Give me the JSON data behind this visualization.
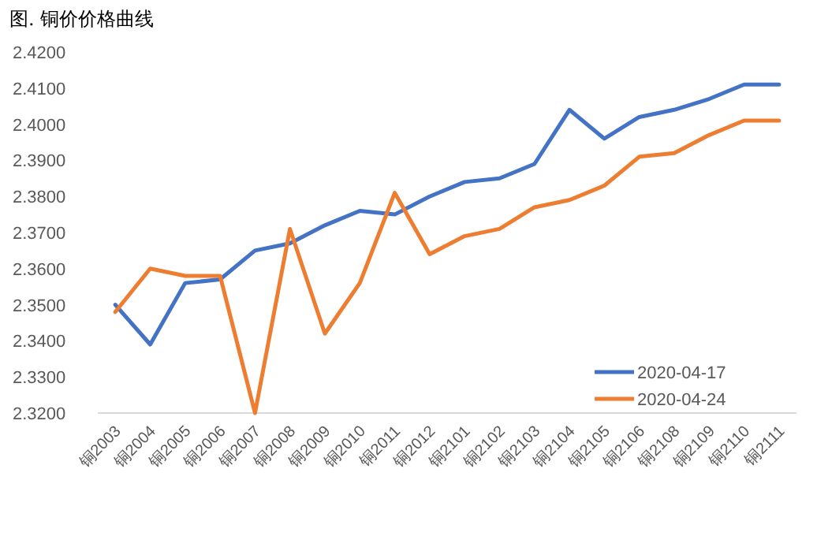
{
  "chart_data": {
    "type": "line",
    "title": "图. 铜价价格曲线",
    "categories": [
      "铜2003",
      "铜2004",
      "铜2005",
      "铜2006",
      "铜2007",
      "铜2008",
      "铜2009",
      "铜2010",
      "铜2011",
      "铜2012",
      "铜2101",
      "铜2102",
      "铜2103",
      "铜2104",
      "铜2105",
      "铜2106",
      "铜2108",
      "铜2109",
      "铜2110",
      "铜2111"
    ],
    "series": [
      {
        "name": "2020-04-17",
        "color": "#4472c4",
        "values": [
          2.35,
          2.339,
          2.356,
          2.357,
          2.365,
          2.367,
          2.372,
          2.376,
          2.375,
          2.38,
          2.384,
          2.385,
          2.389,
          2.404,
          2.396,
          2.402,
          2.404,
          2.407,
          2.411,
          2.411
        ]
      },
      {
        "name": "2020-04-24",
        "color": "#ed7d31",
        "values": [
          2.348,
          2.36,
          2.358,
          2.358,
          2.32,
          2.371,
          2.342,
          2.356,
          2.381,
          2.364,
          2.369,
          2.371,
          2.377,
          2.379,
          2.383,
          2.391,
          2.392,
          2.397,
          2.401,
          2.401
        ]
      }
    ],
    "ylim": [
      2.32,
      2.42
    ],
    "yticks": [
      {
        "value": 2.32,
        "label": "2.3200"
      },
      {
        "value": 2.33,
        "label": "2.3300"
      },
      {
        "value": 2.34,
        "label": "2.3400"
      },
      {
        "value": 2.35,
        "label": "2.3500"
      },
      {
        "value": 2.36,
        "label": "2.3600"
      },
      {
        "value": 2.37,
        "label": "2.3700"
      },
      {
        "value": 2.38,
        "label": "2.3800"
      },
      {
        "value": 2.39,
        "label": "2.3900"
      },
      {
        "value": 2.4,
        "label": "2.4000"
      },
      {
        "value": 2.41,
        "label": "2.4100"
      },
      {
        "value": 2.42,
        "label": "2.4200"
      }
    ],
    "grid": false,
    "legend": "bottom right"
  }
}
